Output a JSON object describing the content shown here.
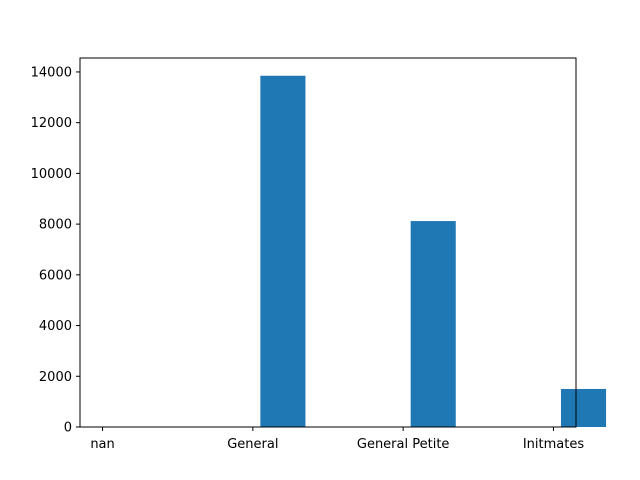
{
  "chart_data": {
    "type": "bar",
    "title": "",
    "xlabel": "",
    "ylabel": "",
    "categories": [
      "nan",
      "General",
      "General Petite",
      "Initmates"
    ],
    "x_positions": [
      0,
      1,
      2,
      3
    ],
    "bars": [
      {
        "x0": 1.05,
        "x1": 1.35,
        "value": 13850
      },
      {
        "x0": 2.05,
        "x1": 2.35,
        "value": 8120
      },
      {
        "x0": 3.05,
        "x1": 3.35,
        "value": 1500
      }
    ],
    "xlim": [
      -0.15,
      3.15
    ],
    "ylim": [
      0,
      14550
    ],
    "yticks": [
      0,
      2000,
      4000,
      6000,
      8000,
      10000,
      12000,
      14000
    ],
    "ytick_labels": [
      "0",
      "2000",
      "4000",
      "6000",
      "8000",
      "10000",
      "12000",
      "14000"
    ],
    "grid": false,
    "bar_color": "#1f77b4"
  }
}
